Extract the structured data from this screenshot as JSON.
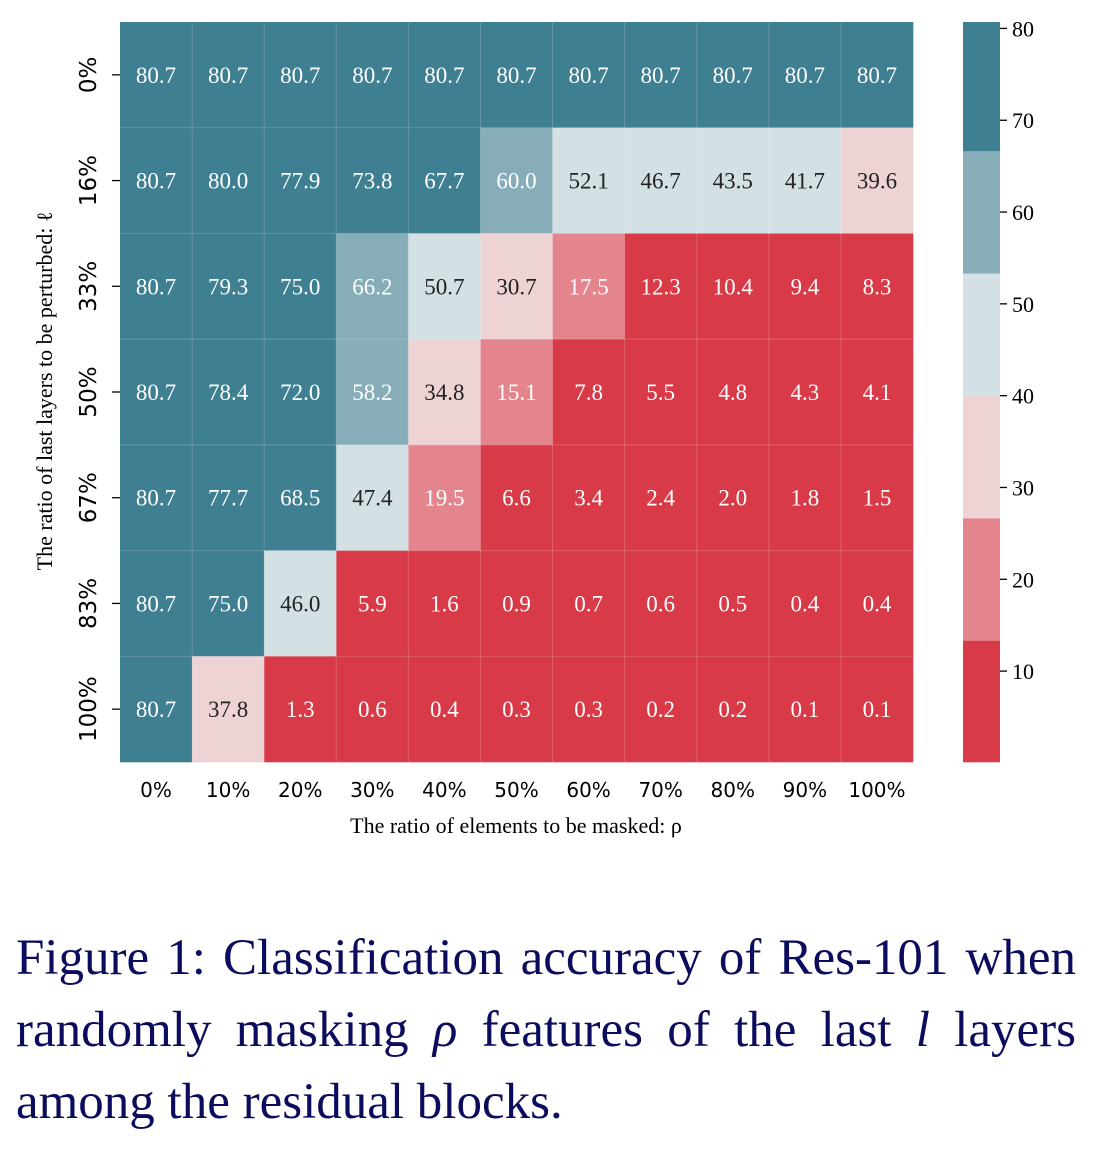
{
  "chart_data": {
    "type": "heatmap",
    "xlabel": "The ratio of elements to be masked: ρ",
    "ylabel": "The ratio of last layers to be perturbed: ℓ",
    "x_categories": [
      "0%",
      "10%",
      "20%",
      "30%",
      "40%",
      "50%",
      "60%",
      "70%",
      "80%",
      "90%",
      "100%"
    ],
    "y_categories": [
      "0%",
      "16%",
      "33%",
      "50%",
      "67%",
      "83%",
      "100%"
    ],
    "values": [
      [
        80.7,
        80.7,
        80.7,
        80.7,
        80.7,
        80.7,
        80.7,
        80.7,
        80.7,
        80.7,
        80.7
      ],
      [
        80.7,
        80.0,
        77.9,
        73.8,
        67.7,
        60.0,
        52.1,
        46.7,
        43.5,
        41.7,
        39.6
      ],
      [
        80.7,
        79.3,
        75.0,
        66.2,
        50.7,
        30.7,
        17.5,
        12.3,
        10.4,
        9.4,
        8.3
      ],
      [
        80.7,
        78.4,
        72.0,
        58.2,
        34.8,
        15.1,
        7.8,
        5.5,
        4.8,
        4.3,
        4.1
      ],
      [
        80.7,
        77.7,
        68.5,
        47.4,
        19.5,
        6.6,
        3.4,
        2.4,
        2.0,
        1.8,
        1.5
      ],
      [
        80.7,
        75.0,
        46.0,
        5.9,
        1.6,
        0.9,
        0.7,
        0.6,
        0.5,
        0.4,
        0.4
      ],
      [
        80.7,
        37.8,
        1.3,
        0.6,
        0.4,
        0.3,
        0.3,
        0.2,
        0.2,
        0.1,
        0.1
      ]
    ],
    "vmin": 0.1,
    "vmax": 80.7,
    "colorbar_ticks": [
      10,
      20,
      30,
      40,
      50,
      60,
      70,
      80
    ],
    "colors": [
      "#d93a47",
      "#e4848c",
      "#eed3d5",
      "#d3e0e4",
      "#87adb8",
      "#3f7f92"
    ],
    "dark_text_color": "#222222",
    "light_text_color": "#ffffff"
  },
  "caption": {
    "lead": "Figure 1:  Classification accuracy of Res-101 when randomly masking ",
    "sym_rho": "ρ",
    "mid": " features of the last ",
    "sym_l": "l",
    "tail": " layers among the residual blocks."
  }
}
